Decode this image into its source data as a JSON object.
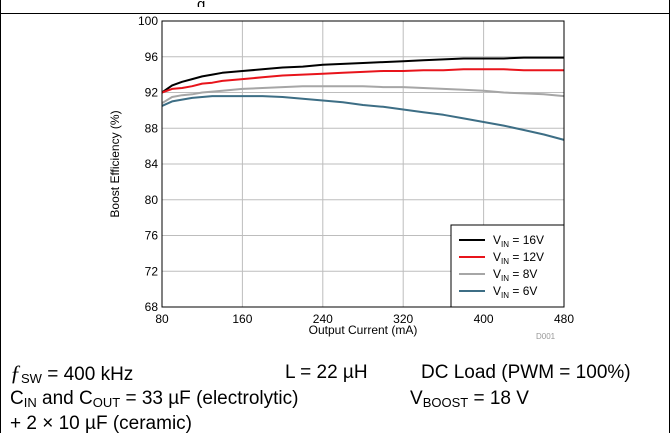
{
  "header": {
    "title_fragment": "g"
  },
  "chart_data": {
    "type": "line",
    "title": "",
    "xlabel": "Output Current (mA)",
    "ylabel": "Boost Efficiency (%)",
    "xlim": [
      80,
      480
    ],
    "ylim": [
      68,
      100
    ],
    "xticks": [
      80,
      160,
      240,
      320,
      400,
      480
    ],
    "yticks": [
      68,
      72,
      76,
      80,
      84,
      88,
      92,
      96,
      100
    ],
    "grid": true,
    "legend_position": "bottom-right",
    "figure_id": "D001",
    "series": [
      {
        "name_main": "V",
        "name_sub": "IN",
        "name_rest": " = 16V",
        "color": "#000000",
        "x": [
          80,
          90,
          100,
          110,
          120,
          130,
          140,
          160,
          180,
          200,
          220,
          240,
          260,
          280,
          300,
          320,
          340,
          360,
          380,
          400,
          420,
          440,
          460,
          480
        ],
        "y": [
          92.0,
          92.8,
          93.2,
          93.5,
          93.8,
          94.0,
          94.2,
          94.4,
          94.6,
          94.8,
          94.9,
          95.1,
          95.2,
          95.3,
          95.4,
          95.5,
          95.6,
          95.7,
          95.8,
          95.8,
          95.8,
          95.9,
          95.9,
          95.9
        ]
      },
      {
        "name_main": "V",
        "name_sub": "IN",
        "name_rest": " = 12V",
        "color": "#e8141b",
        "x": [
          80,
          90,
          100,
          110,
          120,
          130,
          140,
          160,
          180,
          200,
          220,
          240,
          260,
          280,
          300,
          320,
          340,
          360,
          380,
          400,
          420,
          440,
          460,
          480
        ],
        "y": [
          92.0,
          92.4,
          92.5,
          92.7,
          93.0,
          93.1,
          93.3,
          93.5,
          93.7,
          93.9,
          94.0,
          94.1,
          94.2,
          94.3,
          94.4,
          94.4,
          94.5,
          94.5,
          94.6,
          94.6,
          94.6,
          94.5,
          94.5,
          94.5
        ]
      },
      {
        "name_main": "V",
        "name_sub": "IN",
        "name_rest": " = 8V",
        "color": "#a6a6a6",
        "x": [
          80,
          90,
          100,
          110,
          120,
          130,
          140,
          160,
          180,
          200,
          220,
          240,
          260,
          280,
          300,
          320,
          340,
          360,
          380,
          400,
          420,
          440,
          460,
          480
        ],
        "y": [
          90.8,
          91.5,
          91.7,
          91.8,
          92.0,
          92.1,
          92.2,
          92.4,
          92.5,
          92.6,
          92.7,
          92.7,
          92.7,
          92.7,
          92.6,
          92.6,
          92.5,
          92.4,
          92.3,
          92.2,
          92.0,
          91.9,
          91.8,
          91.6
        ]
      },
      {
        "name_main": "V",
        "name_sub": "IN",
        "name_rest": " = 6V",
        "color": "#3d6e85",
        "x": [
          80,
          90,
          100,
          110,
          120,
          130,
          140,
          160,
          180,
          200,
          220,
          240,
          260,
          280,
          300,
          320,
          340,
          360,
          380,
          400,
          420,
          440,
          460,
          480
        ],
        "y": [
          90.5,
          91.0,
          91.2,
          91.4,
          91.5,
          91.6,
          91.6,
          91.6,
          91.6,
          91.5,
          91.3,
          91.1,
          90.9,
          90.6,
          90.4,
          90.1,
          89.8,
          89.5,
          89.1,
          88.7,
          88.3,
          87.8,
          87.3,
          86.7
        ]
      }
    ]
  },
  "notes": {
    "fsw_symbol": "ƒ",
    "fsw_sub": "SW",
    "fsw_value": " = 400 kHz",
    "inductor": "L = 22 µH",
    "dc_load": "DC Load (PWM = 100%)",
    "cap_pre": "C",
    "cap_sub1": "IN",
    "cap_mid": " and C",
    "cap_sub2": "OUT",
    "cap_post": " = 33 µF (electrolytic)",
    "vboost_pre": "V",
    "vboost_sub": "BOOST",
    "vboost_post": " = 18 V",
    "ceramic": "+ 2 × 10 µF (ceramic)"
  }
}
